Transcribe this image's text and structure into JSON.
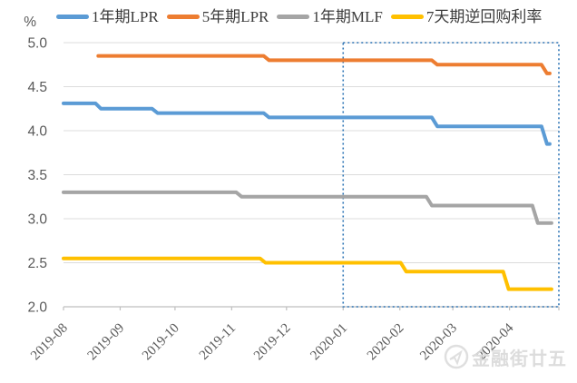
{
  "y_axis_unit_label": "%",
  "watermark": {
    "text": "金融街廿五"
  },
  "colors": {
    "gridline": "#dcdcdc",
    "axis_line": "#bfbfbf",
    "tick_label": "#595959",
    "highlight_box": "#2e75b6",
    "watermark": "#d9d9d9"
  },
  "chart_data": {
    "type": "line",
    "title": "",
    "xlabel": "",
    "ylabel": "%",
    "x_type": "date",
    "x_range": [
      "2019-08-01",
      "2020-04-28"
    ],
    "x_tick_labels": [
      "2019-08",
      "2019-09",
      "2019-10",
      "2019-11",
      "2019-12",
      "2020-01",
      "2020-02",
      "2020-03",
      "2020-04"
    ],
    "ylim": [
      2.0,
      5.0
    ],
    "y_tick_labels": [
      "5.0",
      "4.5",
      "4.0",
      "3.5",
      "3.0",
      "2.5",
      "2.0"
    ],
    "grid": true,
    "legend_position": "top",
    "series": [
      {
        "name": "1年期LPR",
        "color": "#5b9bd5",
        "points": [
          [
            "2019-08-01",
            4.31
          ],
          [
            "2019-08-20",
            4.25
          ],
          [
            "2019-09-20",
            4.2
          ],
          [
            "2019-11-20",
            4.15
          ],
          [
            "2020-02-20",
            4.05
          ],
          [
            "2020-04-20",
            3.85
          ],
          [
            "2020-04-23",
            3.85
          ]
        ]
      },
      {
        "name": "5年期LPR",
        "color": "#ed7d31",
        "points": [
          [
            "2019-08-20",
            4.85
          ],
          [
            "2019-11-20",
            4.8
          ],
          [
            "2020-02-20",
            4.75
          ],
          [
            "2020-04-20",
            4.65
          ],
          [
            "2020-04-23",
            4.65
          ]
        ]
      },
      {
        "name": "1年期MLF",
        "color": "#a5a5a5",
        "points": [
          [
            "2019-08-01",
            3.3
          ],
          [
            "2019-11-05",
            3.25
          ],
          [
            "2020-02-17",
            3.15
          ],
          [
            "2020-04-15",
            2.95
          ],
          [
            "2020-04-24",
            2.95
          ]
        ]
      },
      {
        "name": "7天期逆回购利率",
        "color": "#ffc000",
        "points": [
          [
            "2019-08-01",
            2.55
          ],
          [
            "2019-11-18",
            2.5
          ],
          [
            "2020-02-03",
            2.4
          ],
          [
            "2020-03-30",
            2.2
          ],
          [
            "2020-04-24",
            2.2
          ]
        ]
      }
    ],
    "annotation_box": {
      "from": "2020-01-01",
      "to": "2020-04-28",
      "style": "dotted"
    }
  }
}
